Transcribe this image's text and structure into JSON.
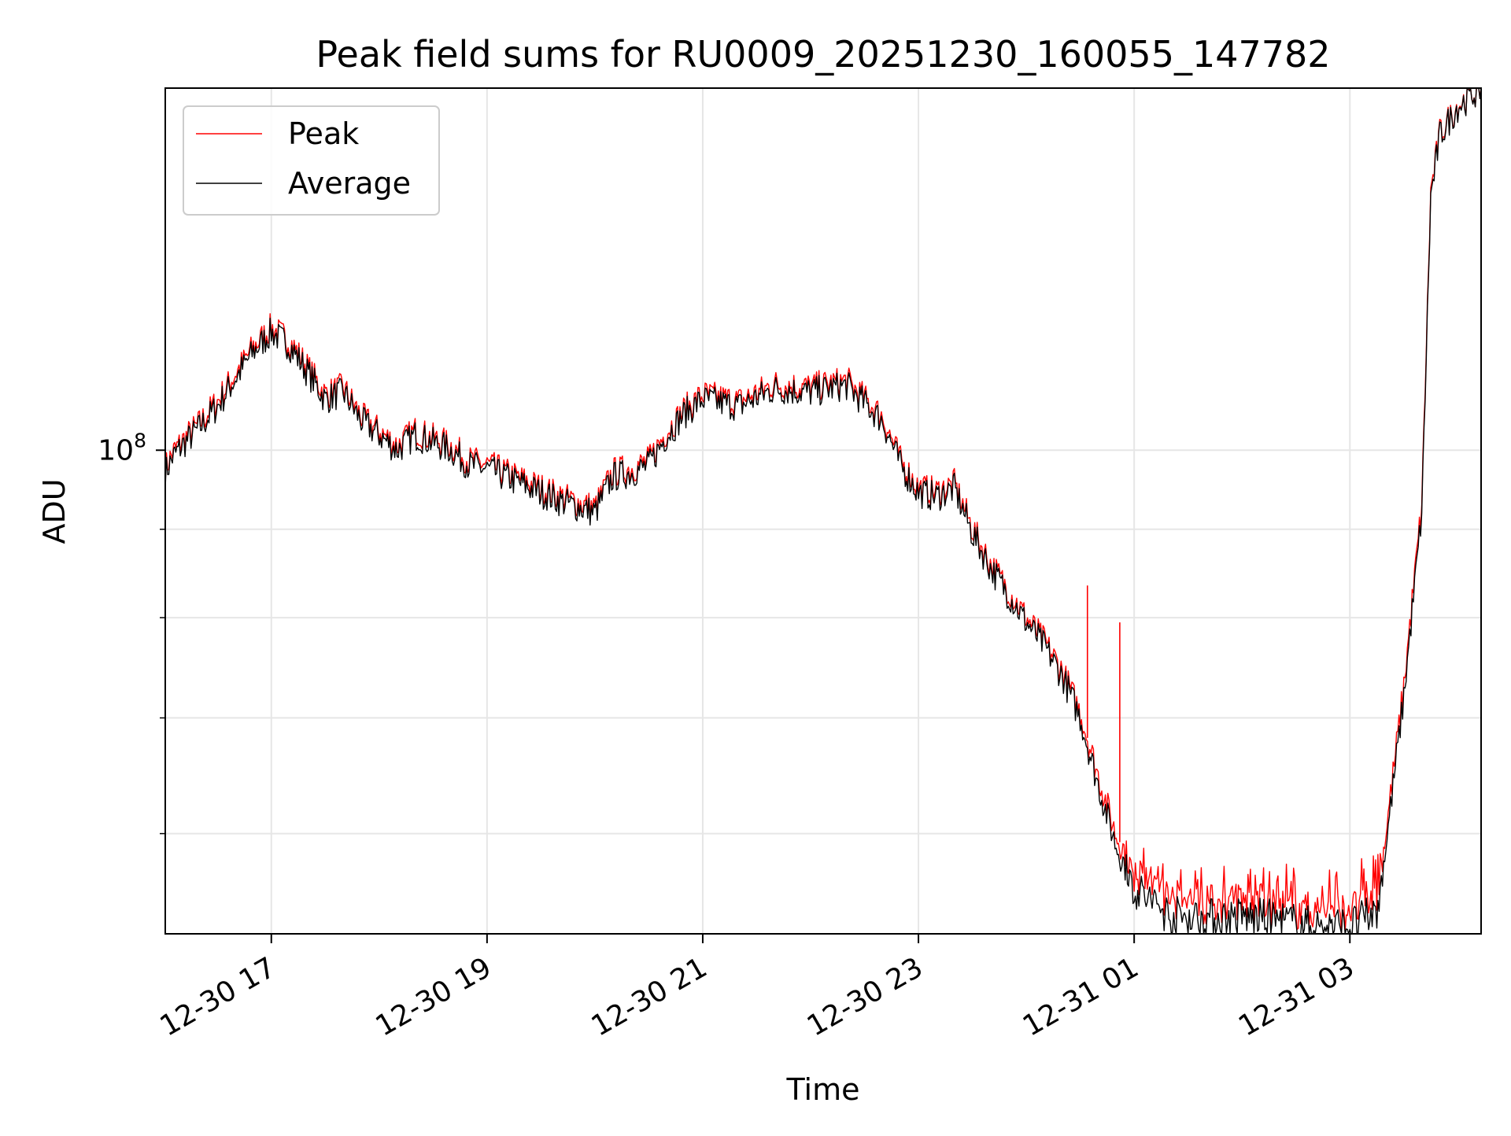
{
  "chart_data": {
    "type": "line",
    "title": "Peak field sums for RU0009_20251230_160055_147782",
    "xlabel": "Time",
    "ylabel": "ADU",
    "yscale": "log",
    "grid": true,
    "legend_position": "top-left",
    "x_range": [
      "2025-12-30 16:01",
      "2025-12-31 04:13"
    ],
    "y_range": [
      52500000,
      162000000
    ],
    "x_ticks": [
      "12-30 17",
      "12-30 19",
      "12-30 21",
      "12-30 23",
      "12-31 01",
      "12-31 03"
    ],
    "x_tick_times": [
      "2025-12-30 17:00",
      "2025-12-30 19:00",
      "2025-12-30 21:00",
      "2025-12-30 23:00",
      "2025-12-31 01:00",
      "2025-12-31 03:00"
    ],
    "y_major_ticks": [
      {
        "value": 100000000,
        "base": "10",
        "exponent": "8"
      }
    ],
    "y_minor_ticks": [
      60000000,
      70000000,
      80000000,
      90000000,
      200000000
    ],
    "series": [
      {
        "name": "Average",
        "color": "#000000",
        "x": [
          "2025-12-30 16:01",
          "2025-12-30 16:05",
          "2025-12-30 16:10",
          "2025-12-30 16:20",
          "2025-12-30 16:30",
          "2025-12-30 16:40",
          "2025-12-30 16:50",
          "2025-12-30 17:00",
          "2025-12-30 17:10",
          "2025-12-30 17:20",
          "2025-12-30 17:30",
          "2025-12-30 17:40",
          "2025-12-30 17:50",
          "2025-12-30 18:00",
          "2025-12-30 18:10",
          "2025-12-30 18:20",
          "2025-12-30 18:30",
          "2025-12-30 18:40",
          "2025-12-30 18:50",
          "2025-12-30 19:00",
          "2025-12-30 19:20",
          "2025-12-30 19:40",
          "2025-12-30 20:00",
          "2025-12-30 20:10",
          "2025-12-30 20:20",
          "2025-12-30 20:30",
          "2025-12-30 20:40",
          "2025-12-30 20:50",
          "2025-12-30 21:00",
          "2025-12-30 21:20",
          "2025-12-30 21:40",
          "2025-12-30 22:00",
          "2025-12-30 22:20",
          "2025-12-30 22:40",
          "2025-12-30 22:50",
          "2025-12-30 23:00",
          "2025-12-30 23:10",
          "2025-12-30 23:20",
          "2025-12-30 23:30",
          "2025-12-30 23:40",
          "2025-12-30 23:50",
          "2025-12-31 00:00",
          "2025-12-31 00:10",
          "2025-12-31 00:20",
          "2025-12-31 00:30",
          "2025-12-31 00:40",
          "2025-12-31 00:50",
          "2025-12-31 00:55",
          "2025-12-31 01:00",
          "2025-12-31 01:20",
          "2025-12-31 01:40",
          "2025-12-31 02:00",
          "2025-12-31 02:20",
          "2025-12-31 02:40",
          "2025-12-31 03:00",
          "2025-12-31 03:15",
          "2025-12-31 03:20",
          "2025-12-31 03:30",
          "2025-12-31 03:40",
          "2025-12-31 03:45",
          "2025-12-31 03:50",
          "2025-12-31 04:00",
          "2025-12-31 04:13"
        ],
        "y": [
          97000000,
          99000000,
          100500000,
          103000000,
          106000000,
          110000000,
          114000000,
          117000000,
          115000000,
          111000000,
          107000000,
          108000000,
          104000000,
          102000000,
          100000000,
          102000000,
          101000000,
          100000000,
          98000000,
          97500000,
          95500000,
          93500000,
          92000000,
          96500000,
          97000000,
          98000000,
          102000000,
          105000000,
          107000000,
          106000000,
          108500000,
          108000000,
          109000000,
          104000000,
          98000000,
          94500000,
          94000000,
          95000000,
          89500000,
          85500000,
          82500000,
          79500000,
          77000000,
          74000000,
          70000000,
          64000000,
          59000000,
          57500000,
          55800000,
          53800000,
          53600000,
          53700000,
          53500000,
          53000000,
          53000000,
          54000000,
          59000000,
          72000000,
          92000000,
          140000000,
          152000000,
          158000000,
          162000000
        ]
      },
      {
        "name": "Peak",
        "color": "#ff0000",
        "x": [
          "2025-12-30 16:01",
          "2025-12-30 16:05",
          "2025-12-30 16:10",
          "2025-12-30 16:20",
          "2025-12-30 16:30",
          "2025-12-30 16:40",
          "2025-12-30 16:50",
          "2025-12-30 17:00",
          "2025-12-30 17:10",
          "2025-12-30 17:20",
          "2025-12-30 17:30",
          "2025-12-30 17:40",
          "2025-12-30 17:50",
          "2025-12-30 18:00",
          "2025-12-30 18:10",
          "2025-12-30 18:20",
          "2025-12-30 18:30",
          "2025-12-30 18:40",
          "2025-12-30 18:50",
          "2025-12-30 19:00",
          "2025-12-30 19:20",
          "2025-12-30 19:40",
          "2025-12-30 20:00",
          "2025-12-30 20:10",
          "2025-12-30 20:20",
          "2025-12-30 20:30",
          "2025-12-30 20:40",
          "2025-12-30 20:50",
          "2025-12-30 21:00",
          "2025-12-30 21:20",
          "2025-12-30 21:40",
          "2025-12-30 22:00",
          "2025-12-30 22:20",
          "2025-12-30 22:40",
          "2025-12-30 22:50",
          "2025-12-30 23:00",
          "2025-12-30 23:10",
          "2025-12-30 23:20",
          "2025-12-30 23:30",
          "2025-12-30 23:40",
          "2025-12-30 23:50",
          "2025-12-31 00:00",
          "2025-12-31 00:10",
          "2025-12-31 00:20",
          "2025-12-31 00:30",
          "2025-12-31 00:40",
          "2025-12-31 00:50",
          "2025-12-31 00:55",
          "2025-12-31 01:00",
          "2025-12-31 01:20",
          "2025-12-31 01:40",
          "2025-12-31 02:00",
          "2025-12-31 02:20",
          "2025-12-31 02:40",
          "2025-12-31 03:00",
          "2025-12-31 03:15",
          "2025-12-31 03:20",
          "2025-12-31 03:30",
          "2025-12-31 03:40",
          "2025-12-31 03:45",
          "2025-12-31 03:50",
          "2025-12-31 04:00",
          "2025-12-31 04:13"
        ],
        "y": [
          97600000,
          99600000,
          101100000,
          103600000,
          106700000,
          110700000,
          114700000,
          117700000,
          115700000,
          111700000,
          107700000,
          108700000,
          104600000,
          102600000,
          100600000,
          102600000,
          101600000,
          100600000,
          98600000,
          98100000,
          96100000,
          94100000,
          92600000,
          97100000,
          97600000,
          98600000,
          102600000,
          105600000,
          107700000,
          106700000,
          109200000,
          108700000,
          109700000,
          104600000,
          98600000,
          95100000,
          94600000,
          95600000,
          90100000,
          86000000,
          83000000,
          80000000,
          77500000,
          74500000,
          70500000,
          64800000,
          59800000,
          58600000,
          56600000,
          55000000,
          54600000,
          54700000,
          54400000,
          54000000,
          54000000,
          55300000,
          60000000,
          73000000,
          93000000,
          141000000,
          152500000,
          158300000,
          162000000
        ]
      }
    ],
    "spikes": [
      {
        "series": "Peak",
        "x": "2025-12-31 00:34",
        "y": 83500000
      },
      {
        "series": "Peak",
        "x": "2025-12-31 00:52",
        "y": 79500000
      }
    ]
  }
}
